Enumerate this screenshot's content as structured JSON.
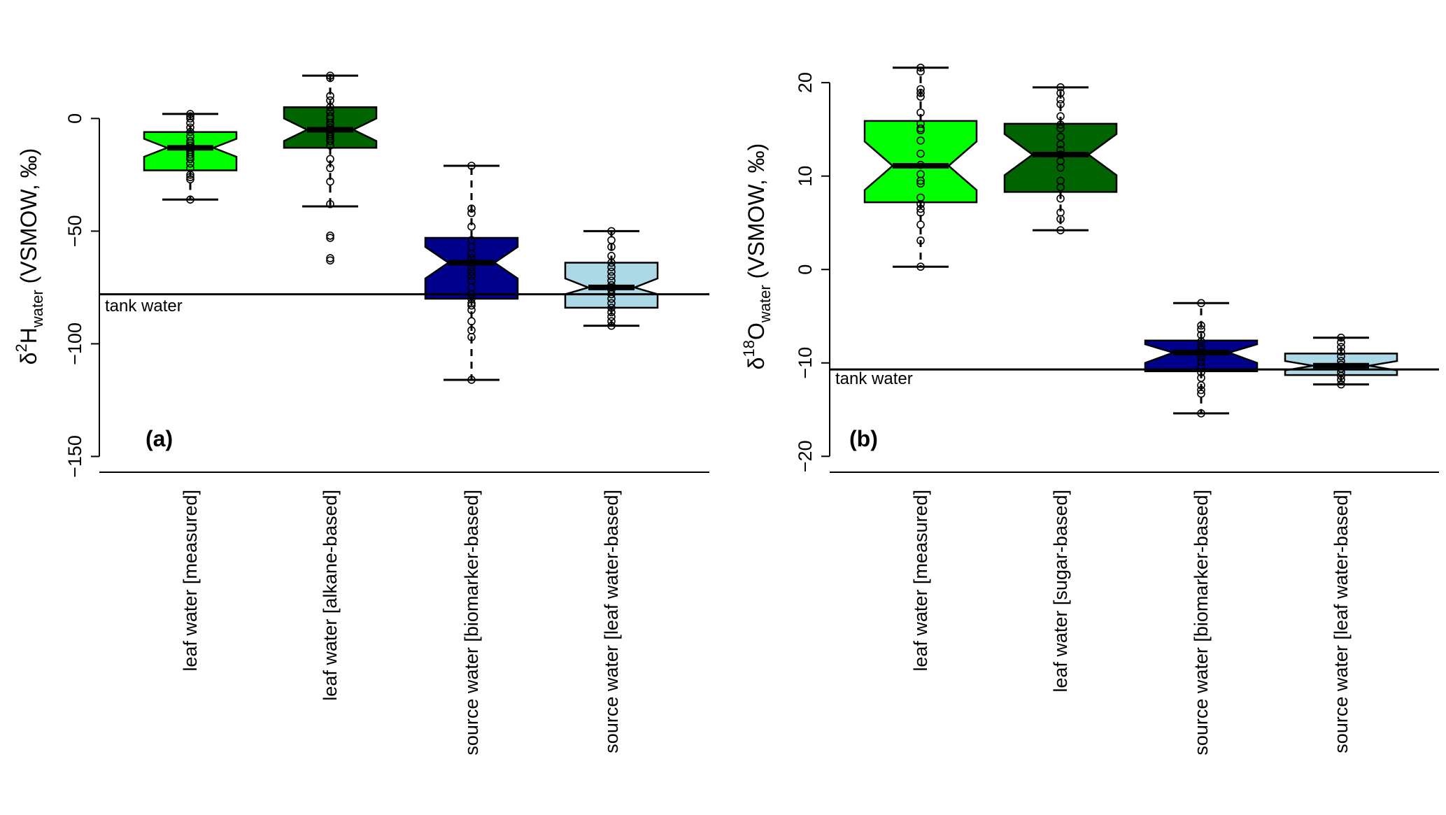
{
  "chart_data": [
    {
      "type": "boxplot",
      "panel_label": "(a)",
      "ylabel": {
        "prefix": "δ",
        "sup": "2",
        "main": "H",
        "sub": "water",
        "suffix": " (VSMOW, ‰)"
      },
      "ylim": [
        -157,
        47
      ],
      "yticks": [
        0,
        -50,
        -100,
        -150
      ],
      "ytick_labels": [
        "0",
        "−50",
        "−100",
        "−150"
      ],
      "reference_line": {
        "value": -78,
        "label": "tank water"
      },
      "categories": [
        "leaf water [measured]",
        "leaf water [alkane-based]",
        "source water [biomarker-based]",
        "source water [leaf water-based]"
      ],
      "colors": [
        "#00ff00",
        "#006400",
        "#00008b",
        "#add8e6"
      ],
      "boxes": [
        {
          "whisker_low": -36,
          "q1": -23,
          "notch_low": -17,
          "median": -13,
          "notch_high": -9,
          "q3": -6,
          "whisker_high": 2,
          "points": [
            2,
            1,
            0,
            -2,
            -4,
            -6,
            -8,
            -10,
            -11,
            -12,
            -13,
            -14,
            -15,
            -16,
            -17,
            -18,
            -20,
            -22,
            -25,
            -26,
            -27,
            -36
          ]
        },
        {
          "whisker_low": -39,
          "q1": -13,
          "notch_low": -10,
          "median": -5,
          "notch_high": 0,
          "q3": 5,
          "whisker_high": 19,
          "points": [
            19,
            18,
            10,
            8,
            5,
            3,
            1,
            0,
            -2,
            -3,
            -4,
            -5,
            -6,
            -7,
            -8,
            -9,
            -10,
            -12,
            -18,
            -22,
            -28,
            -38,
            -52,
            -53,
            -62,
            -63
          ]
        },
        {
          "whisker_low": -116,
          "q1": -80,
          "notch_low": -71,
          "median": -64,
          "notch_high": -57,
          "q3": -53,
          "whisker_high": -21,
          "points": [
            -21,
            -40,
            -42,
            -48,
            -54,
            -57,
            -60,
            -62,
            -64,
            -66,
            -68,
            -70,
            -72,
            -75,
            -78,
            -80,
            -82,
            -83,
            -85,
            -90,
            -94,
            -97,
            -116
          ]
        },
        {
          "whisker_low": -92,
          "q1": -84,
          "notch_low": -78,
          "median": -75,
          "notch_high": -71,
          "q3": -64,
          "whisker_high": -50,
          "points": [
            -50,
            -54,
            -57,
            -61,
            -64,
            -66,
            -68,
            -70,
            -72,
            -74,
            -75,
            -76,
            -78,
            -80,
            -82,
            -84,
            -86,
            -88,
            -90,
            -92
          ]
        }
      ]
    },
    {
      "type": "boxplot",
      "panel_label": "(b)",
      "ylabel": {
        "prefix": "δ",
        "sup": "18",
        "main": "O",
        "sub": "water",
        "suffix": " (VSMOW, ‰)"
      },
      "ylim": [
        -21.7,
        27.5
      ],
      "yticks": [
        20,
        10,
        0,
        -10,
        -20
      ],
      "ytick_labels": [
        "20",
        "10",
        "0",
        "−10",
        "−20"
      ],
      "reference_line": {
        "value": -10.7,
        "label": "tank water"
      },
      "categories": [
        "leaf water [measured]",
        "leaf water [sugar-based]",
        "source water [biomarker-based]",
        "source water [leaf water-based]"
      ],
      "colors": [
        "#00ff00",
        "#006400",
        "#00008b",
        "#add8e6"
      ],
      "boxes": [
        {
          "whisker_low": 0.3,
          "q1": 7.2,
          "notch_low": 8.5,
          "median": 11.1,
          "notch_high": 13.7,
          "q3": 15.9,
          "whisker_high": 21.6,
          "points": [
            21.6,
            21.2,
            19.3,
            18.9,
            18.5,
            16.8,
            15.6,
            15.1,
            14.9,
            13.8,
            12.4,
            11.2,
            10.2,
            9.5,
            9.2,
            7.7,
            7.0,
            6.5,
            6.1,
            4.8,
            3.1,
            0.3
          ]
        },
        {
          "whisker_low": 4.2,
          "q1": 8.3,
          "notch_low": 10.1,
          "median": 12.3,
          "notch_high": 14.5,
          "q3": 15.6,
          "whisker_high": 19.5,
          "points": [
            19.5,
            18.9,
            18.2,
            17.7,
            16.4,
            15.5,
            15.1,
            14.2,
            13.4,
            12.8,
            12.3,
            11.6,
            10.9,
            9.5,
            8.8,
            7.6,
            6.1,
            5.4,
            4.2
          ]
        },
        {
          "whisker_low": -15.4,
          "q1": -10.9,
          "notch_low": -10.0,
          "median": -8.9,
          "notch_high": -8.0,
          "q3": -7.6,
          "whisker_high": -3.6,
          "points": [
            -3.6,
            -6.0,
            -6.4,
            -7.0,
            -7.7,
            -8.2,
            -8.6,
            -9.0,
            -9.4,
            -9.9,
            -10.4,
            -11.0,
            -11.6,
            -12.4,
            -12.9,
            -13.3,
            -15.4
          ]
        },
        {
          "whisker_low": -12.3,
          "q1": -11.3,
          "notch_low": -10.8,
          "median": -10.3,
          "notch_high": -9.8,
          "q3": -9.0,
          "whisker_high": -7.3,
          "points": [
            -7.3,
            -7.8,
            -8.3,
            -8.8,
            -9.3,
            -9.8,
            -10.2,
            -10.6,
            -11.0,
            -11.4,
            -11.8,
            -12.3
          ]
        }
      ]
    }
  ]
}
